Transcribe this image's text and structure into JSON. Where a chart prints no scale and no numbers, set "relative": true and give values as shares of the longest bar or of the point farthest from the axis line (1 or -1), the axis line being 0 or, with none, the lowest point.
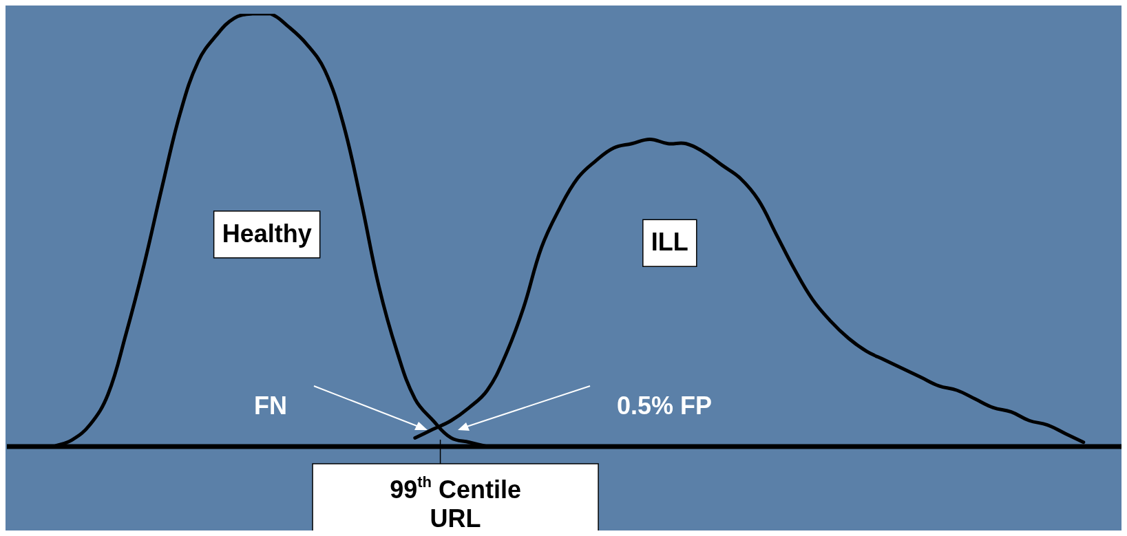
{
  "chart_data": {
    "type": "line",
    "relative": true,
    "legend": false,
    "grid": false,
    "marker": "none",
    "line_style": "solid",
    "categories": [
      null,
      null,
      null,
      null,
      null,
      null,
      null,
      null,
      null,
      null,
      null,
      null,
      null,
      null,
      null,
      null,
      null,
      null,
      null,
      null,
      null,
      null,
      null,
      null,
      null,
      null,
      null,
      null,
      null,
      null,
      null,
      null,
      null,
      null,
      null,
      null,
      null,
      null,
      null,
      null,
      null,
      null,
      null,
      null,
      null,
      null,
      null,
      null,
      null,
      null,
      null,
      null,
      null,
      null,
      null,
      null,
      null,
      null,
      null
    ],
    "series": [
      {
        "name": "Healthy",
        "color": "#000000",
        "values": [
          0,
          0.015,
          0.05,
          0.12,
          0.26,
          0.42,
          0.6,
          0.77,
          0.89,
          0.95,
          0.99,
          1,
          1,
          0.97,
          0.93,
          0.87,
          0.75,
          0.57,
          0.37,
          0.22,
          0.11,
          0.06,
          0.02,
          0.01,
          0,
          null,
          null,
          null,
          null,
          null,
          null,
          null,
          null,
          null,
          null,
          null,
          null,
          null,
          null,
          null,
          null,
          null,
          null,
          null,
          null,
          null,
          null,
          null,
          null,
          null,
          null,
          null,
          null,
          null,
          null,
          null,
          null,
          null,
          null
        ]
      },
      {
        "name": "ILL",
        "color": "#000000",
        "values": [
          null,
          null,
          null,
          null,
          null,
          null,
          null,
          null,
          null,
          null,
          null,
          null,
          null,
          null,
          null,
          null,
          null,
          null,
          null,
          null,
          0.02,
          0.04,
          0.06,
          0.09,
          0.13,
          0.21,
          0.32,
          0.46,
          0.55,
          0.62,
          0.66,
          0.69,
          0.7,
          0.71,
          0.7,
          0.7,
          0.68,
          0.65,
          0.62,
          0.57,
          0.49,
          0.41,
          0.34,
          0.29,
          0.25,
          0.22,
          0.2,
          0.18,
          0.16,
          0.14,
          0.13,
          0.11,
          0.09,
          0.08,
          0.06,
          0.05,
          0.03,
          0.01,
          null
        ]
      }
    ],
    "annotations": [
      "FN",
      "0.5% FP",
      "99$^{th}$ Centile URL"
    ]
  }
}
